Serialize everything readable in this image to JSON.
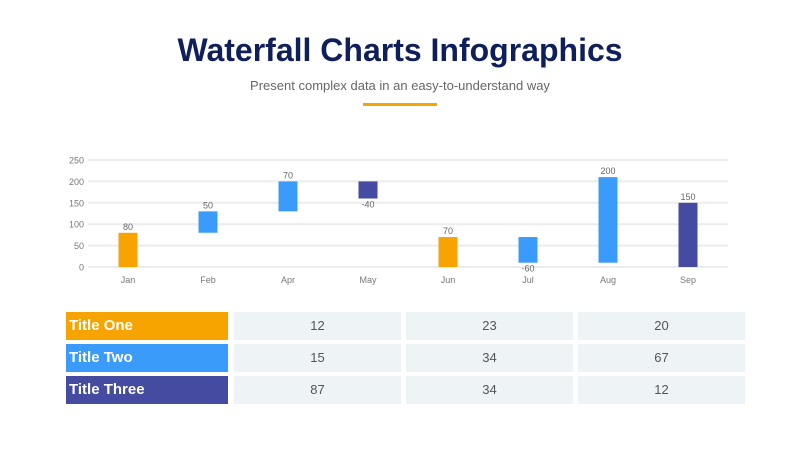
{
  "header": {
    "title": "Waterfall Charts Infographics",
    "subtitle": "Present complex data in an easy-to-understand way"
  },
  "colors": {
    "orange": "#F7A400",
    "blue": "#3A9BFB",
    "navy": "#444BA0",
    "title": "#0F1F5C"
  },
  "chart_data": {
    "type": "bar",
    "subtype": "waterfall",
    "categories": [
      "Jan",
      "Feb",
      "Apr",
      "May",
      "Jun",
      "Jul",
      "Aug",
      "Sep"
    ],
    "bars": [
      {
        "start": 0,
        "end": 80,
        "label": "80",
        "color": "orange"
      },
      {
        "start": 80,
        "end": 130,
        "label": "50",
        "color": "blue"
      },
      {
        "start": 130,
        "end": 200,
        "label": "70",
        "color": "blue"
      },
      {
        "start": 200,
        "end": 160,
        "label": "-40",
        "color": "navy"
      },
      {
        "start": 0,
        "end": 70,
        "label": "70",
        "color": "orange"
      },
      {
        "start": 70,
        "end": 10,
        "label": "-60",
        "color": "blue"
      },
      {
        "start": 10,
        "end": 210,
        "label": "200",
        "color": "blue"
      },
      {
        "start": 0,
        "end": 150,
        "label": "150",
        "color": "navy"
      }
    ],
    "yticks": [
      0,
      50,
      100,
      150,
      200,
      250
    ],
    "ylim": [
      0,
      250
    ],
    "grid": true
  },
  "table": {
    "rows": [
      {
        "label": "Title One",
        "color": "#F7A400",
        "values": [
          "12",
          "23",
          "20"
        ]
      },
      {
        "label": "Title Two",
        "color": "#3A9BFB",
        "values": [
          "15",
          "34",
          "67"
        ]
      },
      {
        "label": "Title Three",
        "color": "#444BA0",
        "values": [
          "87",
          "34",
          "12"
        ]
      }
    ]
  }
}
